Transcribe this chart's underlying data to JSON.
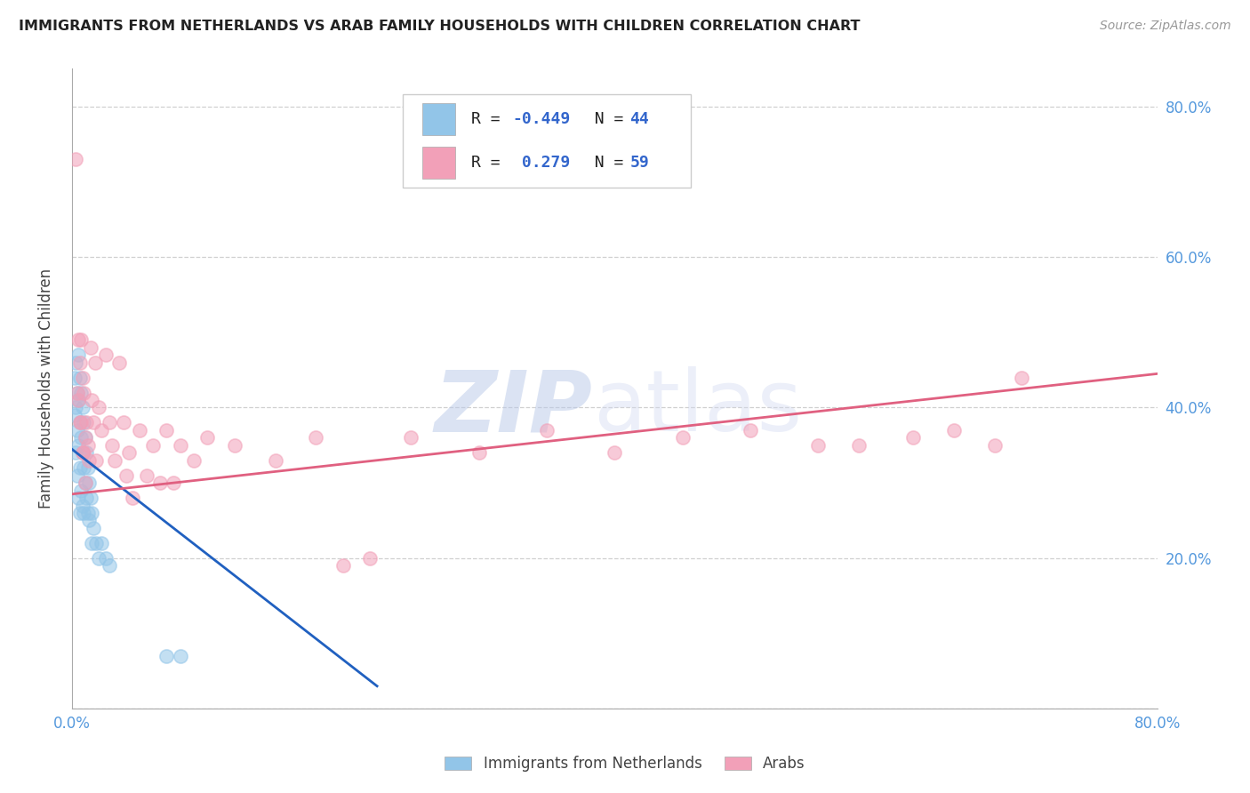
{
  "title": "IMMIGRANTS FROM NETHERLANDS VS ARAB FAMILY HOUSEHOLDS WITH CHILDREN CORRELATION CHART",
  "source": "Source: ZipAtlas.com",
  "ylabel": "Family Households with Children",
  "xlim": [
    0.0,
    0.8
  ],
  "ylim": [
    0.0,
    0.85
  ],
  "yticks": [
    0.0,
    0.2,
    0.4,
    0.6,
    0.8
  ],
  "xticks": [
    0.0,
    0.1,
    0.2,
    0.3,
    0.4,
    0.5,
    0.6,
    0.7,
    0.8
  ],
  "blue_scatter_x": [
    0.002,
    0.002,
    0.003,
    0.003,
    0.003,
    0.004,
    0.004,
    0.004,
    0.005,
    0.005,
    0.005,
    0.005,
    0.006,
    0.006,
    0.006,
    0.006,
    0.007,
    0.007,
    0.007,
    0.008,
    0.008,
    0.008,
    0.009,
    0.009,
    0.009,
    0.01,
    0.01,
    0.011,
    0.011,
    0.012,
    0.012,
    0.013,
    0.013,
    0.014,
    0.015,
    0.015,
    0.016,
    0.018,
    0.02,
    0.022,
    0.025,
    0.028,
    0.07,
    0.08
  ],
  "blue_scatter_y": [
    0.44,
    0.39,
    0.46,
    0.4,
    0.34,
    0.42,
    0.37,
    0.31,
    0.47,
    0.41,
    0.35,
    0.28,
    0.44,
    0.38,
    0.32,
    0.26,
    0.42,
    0.36,
    0.29,
    0.4,
    0.34,
    0.27,
    0.38,
    0.32,
    0.26,
    0.36,
    0.3,
    0.34,
    0.28,
    0.32,
    0.26,
    0.3,
    0.25,
    0.28,
    0.26,
    0.22,
    0.24,
    0.22,
    0.2,
    0.22,
    0.2,
    0.19,
    0.07,
    0.07
  ],
  "pink_scatter_x": [
    0.003,
    0.004,
    0.005,
    0.005,
    0.006,
    0.006,
    0.007,
    0.007,
    0.008,
    0.008,
    0.009,
    0.009,
    0.01,
    0.01,
    0.011,
    0.012,
    0.013,
    0.014,
    0.015,
    0.016,
    0.017,
    0.018,
    0.02,
    0.022,
    0.025,
    0.028,
    0.03,
    0.032,
    0.035,
    0.038,
    0.04,
    0.042,
    0.045,
    0.05,
    0.055,
    0.06,
    0.065,
    0.07,
    0.075,
    0.08,
    0.09,
    0.1,
    0.12,
    0.15,
    0.18,
    0.2,
    0.22,
    0.25,
    0.3,
    0.35,
    0.4,
    0.45,
    0.5,
    0.55,
    0.58,
    0.62,
    0.65,
    0.68,
    0.7
  ],
  "pink_scatter_y": [
    0.73,
    0.42,
    0.49,
    0.41,
    0.46,
    0.38,
    0.49,
    0.38,
    0.44,
    0.34,
    0.42,
    0.34,
    0.36,
    0.3,
    0.38,
    0.35,
    0.33,
    0.48,
    0.41,
    0.38,
    0.46,
    0.33,
    0.4,
    0.37,
    0.47,
    0.38,
    0.35,
    0.33,
    0.46,
    0.38,
    0.31,
    0.34,
    0.28,
    0.37,
    0.31,
    0.35,
    0.3,
    0.37,
    0.3,
    0.35,
    0.33,
    0.36,
    0.35,
    0.33,
    0.36,
    0.19,
    0.2,
    0.36,
    0.34,
    0.37,
    0.34,
    0.36,
    0.37,
    0.35,
    0.35,
    0.36,
    0.37,
    0.35,
    0.44
  ],
  "blue_line_x": [
    0.0,
    0.225
  ],
  "blue_line_y": [
    0.345,
    0.03
  ],
  "pink_line_x": [
    0.0,
    0.8
  ],
  "pink_line_y": [
    0.285,
    0.445
  ],
  "blue_color": "#92C5E8",
  "pink_color": "#F2A0B8",
  "blue_scatter_edge": "#A8D0F0",
  "pink_scatter_edge": "#F5B0C5",
  "blue_line_color": "#2060C0",
  "pink_line_color": "#E06080",
  "background_color": "#ffffff",
  "grid_color": "#d0d0d0",
  "tick_color": "#5599dd",
  "text_color": "#5599dd",
  "legend_R_color": "#3366cc",
  "legend_N_color": "#3366cc"
}
